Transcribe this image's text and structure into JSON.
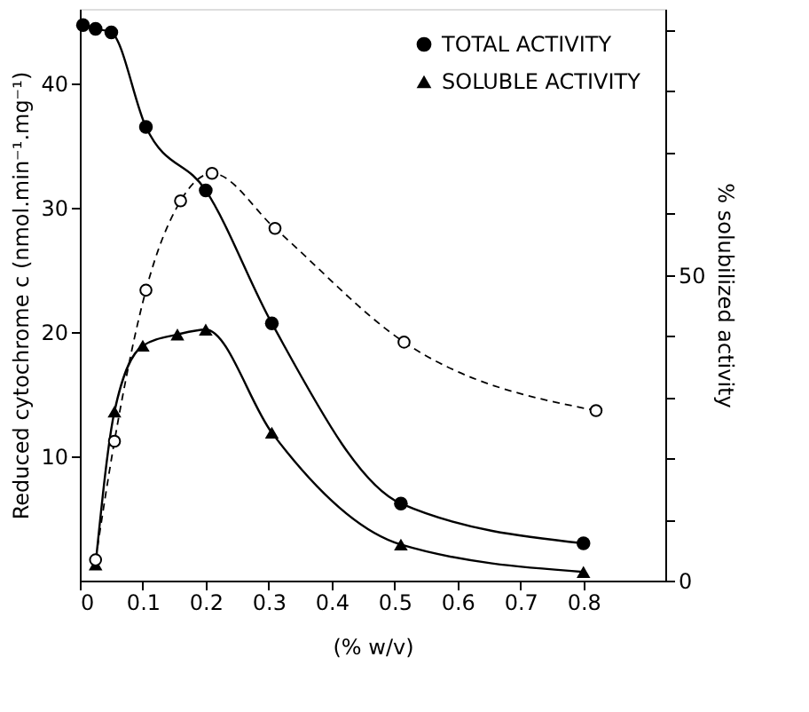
{
  "chart_data": {
    "type": "line",
    "xlabel": "(% w/v)",
    "ylabel": "Reduced cytochrome c (nmol.min⁻¹.mg⁻¹)",
    "y2label": "% solubilized activity",
    "xlim": [
      0,
      0.93
    ],
    "xticks": [
      0,
      0.1,
      0.2,
      0.3,
      0.4,
      0.5,
      0.6,
      0.7,
      0.8
    ],
    "ylim": [
      0,
      46
    ],
    "yticks": [
      10,
      20,
      30,
      40
    ],
    "y2lim": [
      0,
      93.5
    ],
    "y2ticks": [
      0,
      {
        "value": 10,
        "label": null
      },
      {
        "value": 20,
        "label": null
      },
      {
        "value": 30,
        "label": null
      },
      {
        "value": 40,
        "label": null
      },
      50,
      {
        "value": 60,
        "label": null
      },
      {
        "value": 70,
        "label": null
      },
      {
        "value": 80,
        "label": null
      },
      {
        "value": 90,
        "label": null
      }
    ],
    "legend": "top right",
    "grid": false,
    "series": [
      {
        "name": "TOTAL ACTIVITY",
        "color": "#000000",
        "marker": "circle",
        "line_style": "solid",
        "x": [
          0.005,
          0.025,
          0.05,
          0.105,
          0.2,
          0.305,
          0.51,
          0.8
        ],
        "values": [
          44.7,
          44.4,
          44.1,
          36.5,
          31.4,
          20.7,
          6.2,
          3.0
        ]
      },
      {
        "name": "SOLUBLE ACTIVITY",
        "color": "#000000",
        "marker": "triangle",
        "line_style": "solid",
        "x": [
          0.025,
          0.055,
          0.1,
          0.155,
          0.2,
          0.305,
          0.51,
          0.8
        ],
        "values": [
          1.3,
          13.6,
          18.9,
          19.8,
          20.2,
          11.9,
          2.9,
          0.7
        ]
      },
      {
        "color": "#000000",
        "marker": "circle",
        "line_style": "dashed",
        "axis": "y2",
        "x": [
          0.025,
          0.055,
          0.105,
          0.16,
          0.21,
          0.31,
          0.515,
          0.82
        ],
        "values": [
          3.4,
          22.8,
          47.5,
          62.1,
          66.6,
          57.6,
          39.0,
          27.8
        ]
      }
    ]
  }
}
